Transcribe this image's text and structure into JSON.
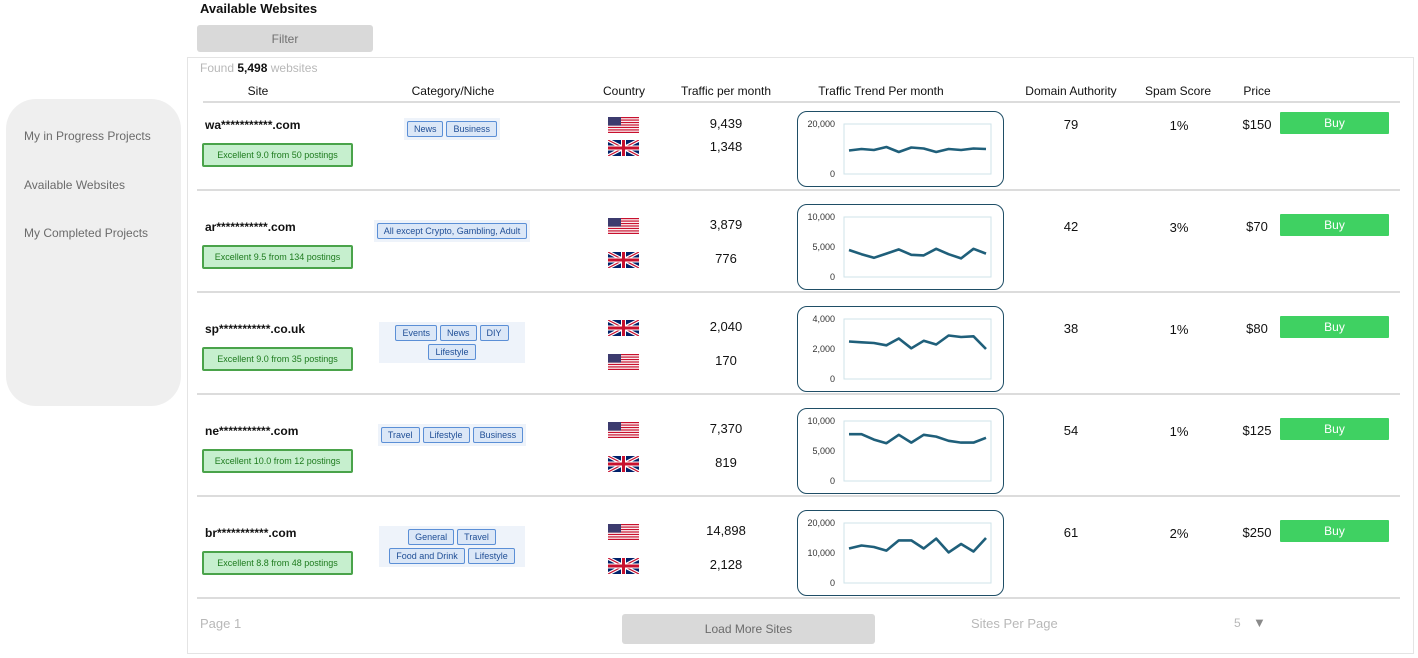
{
  "page": {
    "title": "Available Websites",
    "filter_label": "Filter"
  },
  "sidebar": {
    "items": [
      {
        "label": "My in Progress Projects"
      },
      {
        "label": "Available Websites"
      },
      {
        "label": "My Completed Projects"
      }
    ]
  },
  "found": {
    "prefix": "Found",
    "count": "5,498",
    "suffix": "websites"
  },
  "columns": {
    "site": "Site",
    "category": "Category/Niche",
    "country": "Country",
    "traffic": "Traffic per month",
    "trend": "Traffic Trend Per month",
    "da": "Domain Authority",
    "spam": "Spam Score",
    "price": "Price"
  },
  "rows": [
    {
      "site": "wa***********.com",
      "rating": "Excellent  9.0 from  50 postings",
      "tags": [
        "News",
        "Business"
      ],
      "countries": [
        "us",
        "uk"
      ],
      "traffic": [
        "9,439",
        "1,348"
      ],
      "trend": {
        "ymax": 20000,
        "ticks": [
          "20,000",
          "0"
        ],
        "values": [
          9400,
          10000,
          9600,
          10800,
          8800,
          10600,
          10200,
          8800,
          10000,
          9600,
          10200,
          10000
        ]
      },
      "da": "79",
      "spam": "1%",
      "price": "$150",
      "buy_label": "Buy"
    },
    {
      "site": "ar***********.com",
      "rating": "Excellent  9.5 from  134 postings",
      "tags": [
        "All except Crypto, Gambling, Adult"
      ],
      "countries": [
        "us",
        "uk"
      ],
      "traffic": [
        "3,879",
        "776"
      ],
      "trend": {
        "ymax": 10000,
        "ticks": [
          "10,000",
          "5,000",
          "0"
        ],
        "values": [
          4500,
          3800,
          3200,
          3900,
          4600,
          3700,
          3600,
          4700,
          3800,
          3100,
          4700,
          3900
        ]
      },
      "da": "42",
      "spam": "3%",
      "price": "$70",
      "buy_label": "Buy"
    },
    {
      "site": "sp***********.co.uk",
      "rating": "Excellent  9.0 from  35 postings",
      "tags": [
        "Events",
        "News",
        "DIY",
        "Lifestyle"
      ],
      "countries": [
        "uk",
        "us"
      ],
      "traffic": [
        "2,040",
        "170"
      ],
      "trend": {
        "ymax": 4000,
        "ticks": [
          "4,000",
          "2,000",
          "0"
        ],
        "values": [
          2500,
          2450,
          2400,
          2250,
          2700,
          2050,
          2550,
          2300,
          2900,
          2800,
          2850,
          2000
        ]
      },
      "da": "38",
      "spam": "1%",
      "price": "$80",
      "buy_label": "Buy"
    },
    {
      "site": "ne***********.com",
      "rating": "Excellent  10.0 from  12 postings",
      "tags": [
        "Travel",
        "Lifestyle",
        "Business"
      ],
      "countries": [
        "us",
        "uk"
      ],
      "traffic": [
        "7,370",
        "819"
      ],
      "trend": {
        "ymax": 10000,
        "ticks": [
          "10,000",
          "5,000",
          "0"
        ],
        "values": [
          7800,
          7800,
          6900,
          6300,
          7700,
          6400,
          7700,
          7400,
          6700,
          6400,
          6400,
          7200
        ]
      },
      "da": "54",
      "spam": "1%",
      "price": "$125",
      "buy_label": "Buy"
    },
    {
      "site": "br***********.com",
      "rating": "Excellent  8.8 from  48 postings",
      "tags": [
        "General",
        "Travel",
        "Food and Drink",
        "Lifestyle"
      ],
      "countries": [
        "us",
        "uk"
      ],
      "traffic": [
        "14,898",
        "2,128"
      ],
      "trend": {
        "ymax": 20000,
        "ticks": [
          "20,000",
          "10,000",
          "0"
        ],
        "values": [
          11500,
          12500,
          12000,
          10800,
          14200,
          14200,
          11500,
          14800,
          10200,
          13000,
          10500,
          15000
        ]
      },
      "da": "61",
      "spam": "2%",
      "price": "$250",
      "buy_label": "Buy"
    }
  ],
  "footer": {
    "page_label": "Page 1",
    "load_more": "Load More Sites",
    "per_page_label": "Sites Per Page",
    "per_page_value": "5",
    "dropdown_glyph": "▼"
  }
}
